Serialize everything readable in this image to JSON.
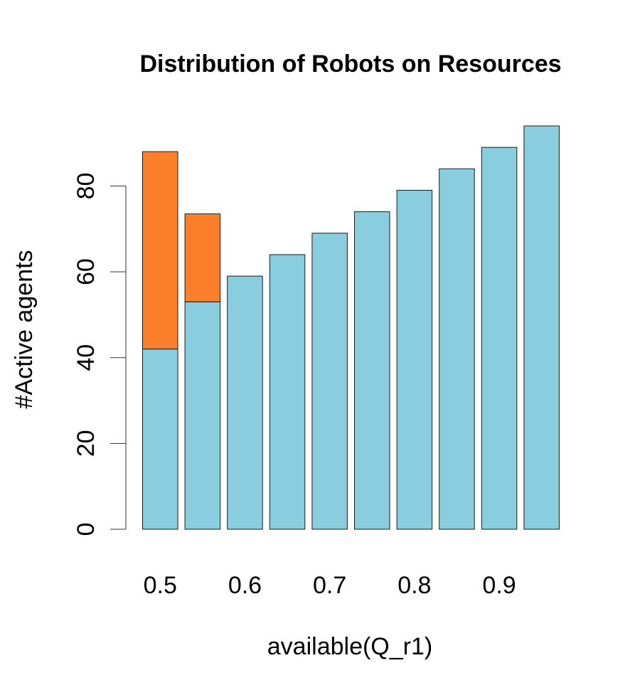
{
  "chart_data": {
    "type": "bar",
    "stacked": true,
    "title": "Distribution of Robots on Resources",
    "xlabel": "available(Q_r1)",
    "ylabel": "#Active agents",
    "ylim": [
      0,
      94
    ],
    "yticks": [
      0,
      20,
      40,
      60,
      80
    ],
    "xtick_labels": [
      "0.5",
      "0.6",
      "0.7",
      "0.8",
      "0.9"
    ],
    "xtick_positions": [
      0.5,
      0.6,
      0.7,
      0.8,
      0.9
    ],
    "x": [
      0.5,
      0.55,
      0.6,
      0.65,
      0.7,
      0.75,
      0.8,
      0.85,
      0.9,
      0.95
    ],
    "series": [
      {
        "color": "#89CDDE",
        "values": [
          42,
          53,
          59,
          64,
          69,
          74,
          79,
          84,
          89,
          94
        ]
      },
      {
        "color": "#FC7F2C",
        "values": [
          46,
          20.5,
          0,
          0,
          0,
          0,
          0,
          0,
          0,
          0
        ]
      }
    ],
    "grid": false,
    "legend": "none"
  }
}
